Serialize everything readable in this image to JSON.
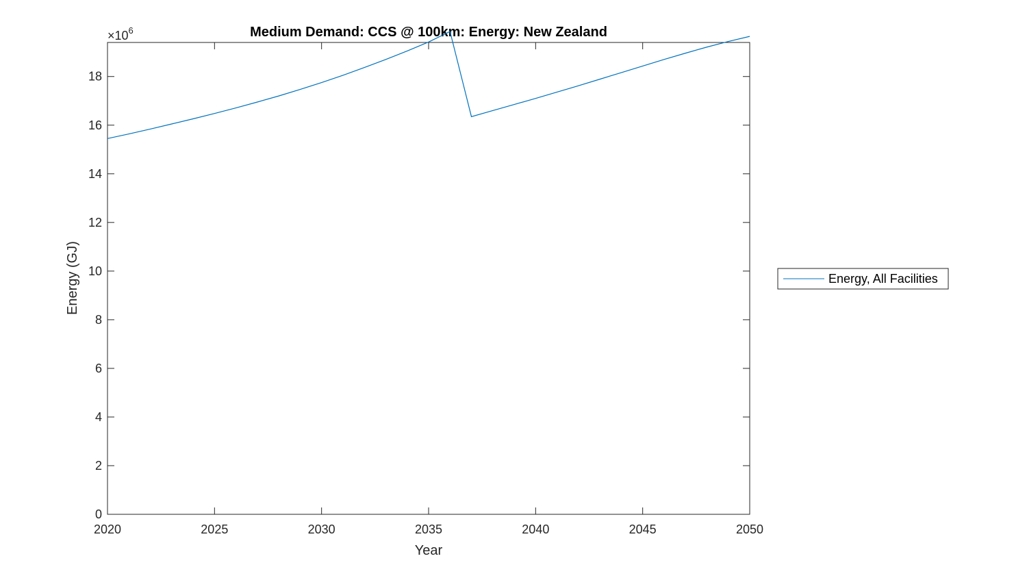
{
  "chart_data": {
    "type": "line",
    "title": "Medium Demand: CCS @ 100km: Energy: New Zealand",
    "xlabel": "Year",
    "ylabel": "Energy (GJ)",
    "xlim": [
      2020,
      2050
    ],
    "ylim": [
      0,
      19.4
    ],
    "y_exponent": {
      "prefix": "×10",
      "power": "6"
    },
    "x_ticks": [
      2020,
      2025,
      2030,
      2035,
      2040,
      2045,
      2050
    ],
    "x_tick_labels": [
      "2020",
      "2025",
      "2030",
      "2035",
      "2040",
      "2045",
      "2050"
    ],
    "y_ticks": [
      0,
      2,
      4,
      6,
      8,
      10,
      12,
      14,
      16,
      18
    ],
    "y_tick_labels": [
      "0",
      "2",
      "4",
      "6",
      "8",
      "10",
      "12",
      "14",
      "16",
      "18"
    ],
    "grid": false,
    "legend_position": "outside-right",
    "series": [
      {
        "name": "Energy, All Facilities",
        "color": "#0072BD",
        "x": [
          2020,
          2021,
          2022,
          2023,
          2024,
          2025,
          2026,
          2027,
          2028,
          2029,
          2030,
          2031,
          2032,
          2033,
          2034,
          2035,
          2036,
          2037,
          2038,
          2039,
          2040,
          2041,
          2042,
          2043,
          2044,
          2045,
          2046,
          2047,
          2048,
          2049,
          2050
        ],
        "y": [
          15.45,
          15.64,
          15.84,
          16.05,
          16.26,
          16.48,
          16.71,
          16.95,
          17.2,
          17.47,
          17.75,
          18.05,
          18.37,
          18.7,
          19.05,
          19.42,
          19.85,
          16.35,
          16.6,
          16.85,
          17.1,
          17.36,
          17.62,
          17.89,
          18.16,
          18.43,
          18.7,
          18.96,
          19.21,
          19.44,
          19.65
        ]
      }
    ]
  }
}
